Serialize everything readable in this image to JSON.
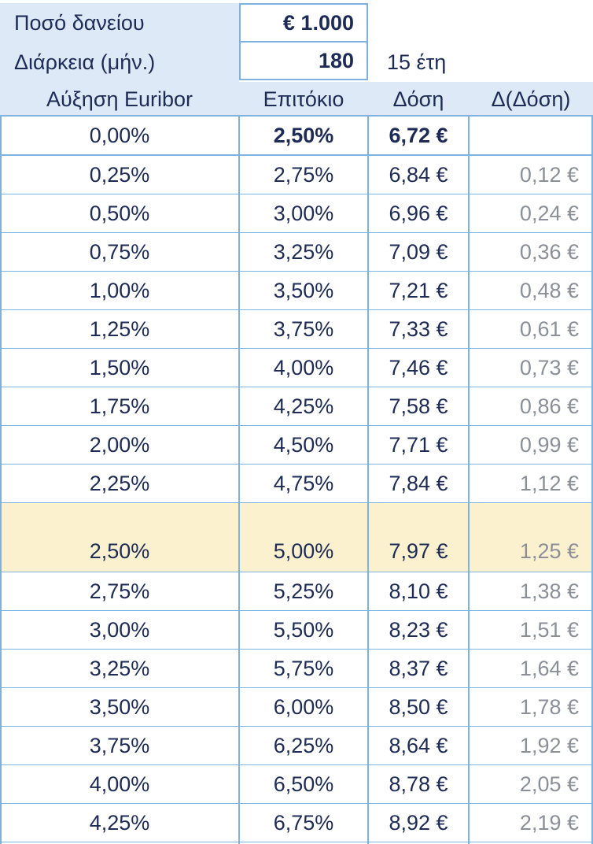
{
  "params": {
    "amount_label": "Ποσό δανείου",
    "amount_value": "€ 1.000",
    "duration_label": "Διάρκεια (μήν.)",
    "duration_value": "180",
    "duration_note": "15 έτη"
  },
  "table": {
    "headers": [
      "Αύξηση Euribor",
      "Επιτόκιο",
      "Δόση",
      "Δ(Δόση)"
    ],
    "highlighted_row": 10,
    "rows": [
      {
        "euribor": "0,00%",
        "rate": "2,50%",
        "payment": "6,72 €",
        "delta": ""
      },
      {
        "euribor": "0,25%",
        "rate": "2,75%",
        "payment": "6,84 €",
        "delta": "0,12 €"
      },
      {
        "euribor": "0,50%",
        "rate": "3,00%",
        "payment": "6,96 €",
        "delta": "0,24 €"
      },
      {
        "euribor": "0,75%",
        "rate": "3,25%",
        "payment": "7,09 €",
        "delta": "0,36 €"
      },
      {
        "euribor": "1,00%",
        "rate": "3,50%",
        "payment": "7,21 €",
        "delta": "0,48 €"
      },
      {
        "euribor": "1,25%",
        "rate": "3,75%",
        "payment": "7,33 €",
        "delta": "0,61 €"
      },
      {
        "euribor": "1,50%",
        "rate": "4,00%",
        "payment": "7,46 €",
        "delta": "0,73 €"
      },
      {
        "euribor": "1,75%",
        "rate": "4,25%",
        "payment": "7,58 €",
        "delta": "0,86 €"
      },
      {
        "euribor": "2,00%",
        "rate": "4,50%",
        "payment": "7,71 €",
        "delta": "0,99 €"
      },
      {
        "euribor": "2,25%",
        "rate": "4,75%",
        "payment": "7,84 €",
        "delta": "1,12 €"
      },
      {
        "euribor": "2,50%",
        "rate": "5,00%",
        "payment": "7,97 €",
        "delta": "1,25 €"
      },
      {
        "euribor": "2,75%",
        "rate": "5,25%",
        "payment": "8,10 €",
        "delta": "1,38 €"
      },
      {
        "euribor": "3,00%",
        "rate": "5,50%",
        "payment": "8,23 €",
        "delta": "1,51 €"
      },
      {
        "euribor": "3,25%",
        "rate": "5,75%",
        "payment": "8,37 €",
        "delta": "1,64 €"
      },
      {
        "euribor": "3,50%",
        "rate": "6,00%",
        "payment": "8,50 €",
        "delta": "1,78 €"
      },
      {
        "euribor": "3,75%",
        "rate": "6,25%",
        "payment": "8,64 €",
        "delta": "1,92 €"
      },
      {
        "euribor": "4,00%",
        "rate": "6,50%",
        "payment": "8,78 €",
        "delta": "2,05 €"
      },
      {
        "euribor": "4,25%",
        "rate": "6,75%",
        "payment": "8,92 €",
        "delta": "2,19 €"
      }
    ]
  },
  "colors": {
    "text": "#1d2b57",
    "header_bg": "#dde9f6",
    "border": "#7db3e0",
    "highlight_bg": "#fbf1cf",
    "delta_text": "#8b8f98"
  }
}
